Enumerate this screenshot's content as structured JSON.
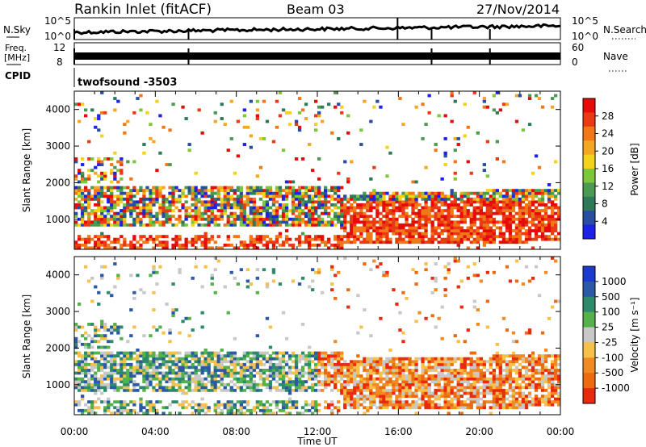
{
  "header": {
    "station": "Rankin Inlet (fitACF)",
    "beam": "Beam 03",
    "date": "27/Nov/2014"
  },
  "noise_panel": {
    "left_label": "N.Sky",
    "right_label": "N.Search",
    "left_ticks": [
      "10^5",
      "10^0"
    ],
    "right_ticks": [
      "10^5",
      "10^0"
    ]
  },
  "freq_panel": {
    "left_label_1": "Freq.",
    "left_label_2": "[MHz]",
    "right_label": "Nave",
    "left_ticks": [
      "12",
      "8"
    ],
    "right_ticks": [
      "60",
      "0"
    ]
  },
  "cpid": {
    "label": "CPID",
    "value": "twofsound -3503"
  },
  "chart_data": [
    {
      "type": "heatmap",
      "name": "power",
      "ylabel": "Slant Range [km]",
      "ylim": [
        180,
        4500
      ],
      "yticks": [
        1000,
        2000,
        3000,
        4000
      ],
      "xlim": [
        0,
        24
      ],
      "colorbar_label": "Power [dB]",
      "colorbar_ticks": [
        "28",
        "24",
        "20",
        "16",
        "12",
        "8",
        "4"
      ],
      "colors": [
        "#1c22e6",
        "#284ea2",
        "#2e7a58",
        "#4a9a52",
        "#7cc83a",
        "#f2d21a",
        "#f5a623",
        "#f07818",
        "#ea3a12",
        "#e60a0a"
      ]
    },
    {
      "type": "heatmap",
      "name": "velocity",
      "ylabel": "Slant Range [km]",
      "ylim": [
        180,
        4500
      ],
      "yticks": [
        1000,
        2000,
        3000,
        4000
      ],
      "xlim": [
        0,
        24
      ],
      "colorbar_label": "Velocity [m s⁻¹]",
      "colorbar_ticks": [
        "1000",
        "500",
        "100",
        "25",
        "-25",
        "-100",
        "-500",
        "-1000"
      ],
      "colors": [
        "#1c3acd",
        "#2b59a8",
        "#2d8a6b",
        "#55b24a",
        "#c8c8c8",
        "#f6c04a",
        "#f08a22",
        "#ec6a10",
        "#e82a0e"
      ]
    }
  ],
  "x_axis": {
    "ticks": [
      "00:00",
      "04:00",
      "08:00",
      "12:00",
      "16:00",
      "20:00",
      "00:00"
    ],
    "label": "Time UT"
  }
}
